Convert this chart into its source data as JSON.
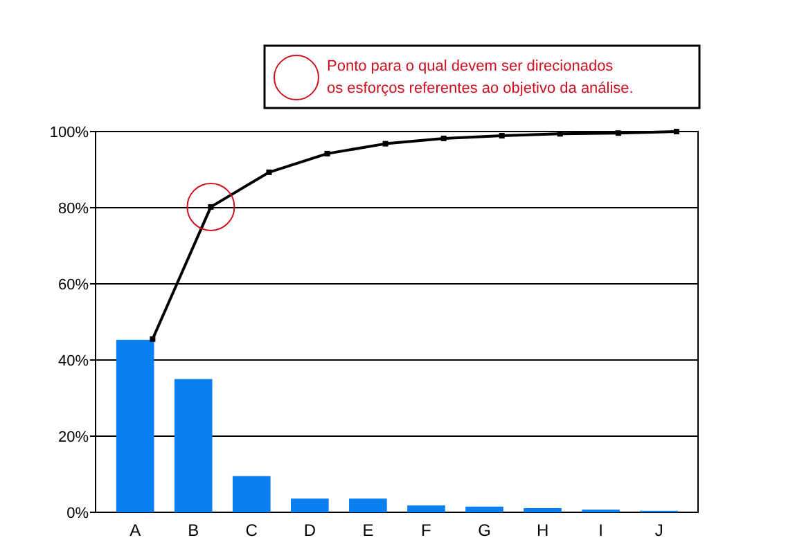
{
  "chart_data": {
    "type": "bar",
    "categories": [
      "A",
      "B",
      "C",
      "D",
      "E",
      "F",
      "G",
      "H",
      "I",
      "J"
    ],
    "series": [
      {
        "color": "#0a7ff0",
        "values": [
          45.3,
          35,
          9.5,
          3.6,
          3.6,
          1.8,
          1.5,
          1.1,
          0.7,
          0.4
        ]
      },
      {
        "type": "line",
        "color": "#000000",
        "values": [
          45.5,
          80.2,
          89.3,
          94.2,
          96.8,
          98.2,
          98.9,
          99.4,
          99.6,
          100
        ],
        "marker": "square"
      }
    ],
    "ylim": [
      0,
      100
    ],
    "yticks": [
      {
        "value": 0,
        "label": "0%"
      },
      {
        "value": 20,
        "label": "20%"
      },
      {
        "value": 40,
        "label": "40%"
      },
      {
        "value": 60,
        "label": "60%"
      },
      {
        "value": 80,
        "label": "80%"
      },
      {
        "value": 100,
        "label": "100%"
      }
    ],
    "grid": "y",
    "annotations": [
      "Ponto para o qual devem ser direcionados os esforços referentes ao objetivo da análise."
    ]
  }
}
